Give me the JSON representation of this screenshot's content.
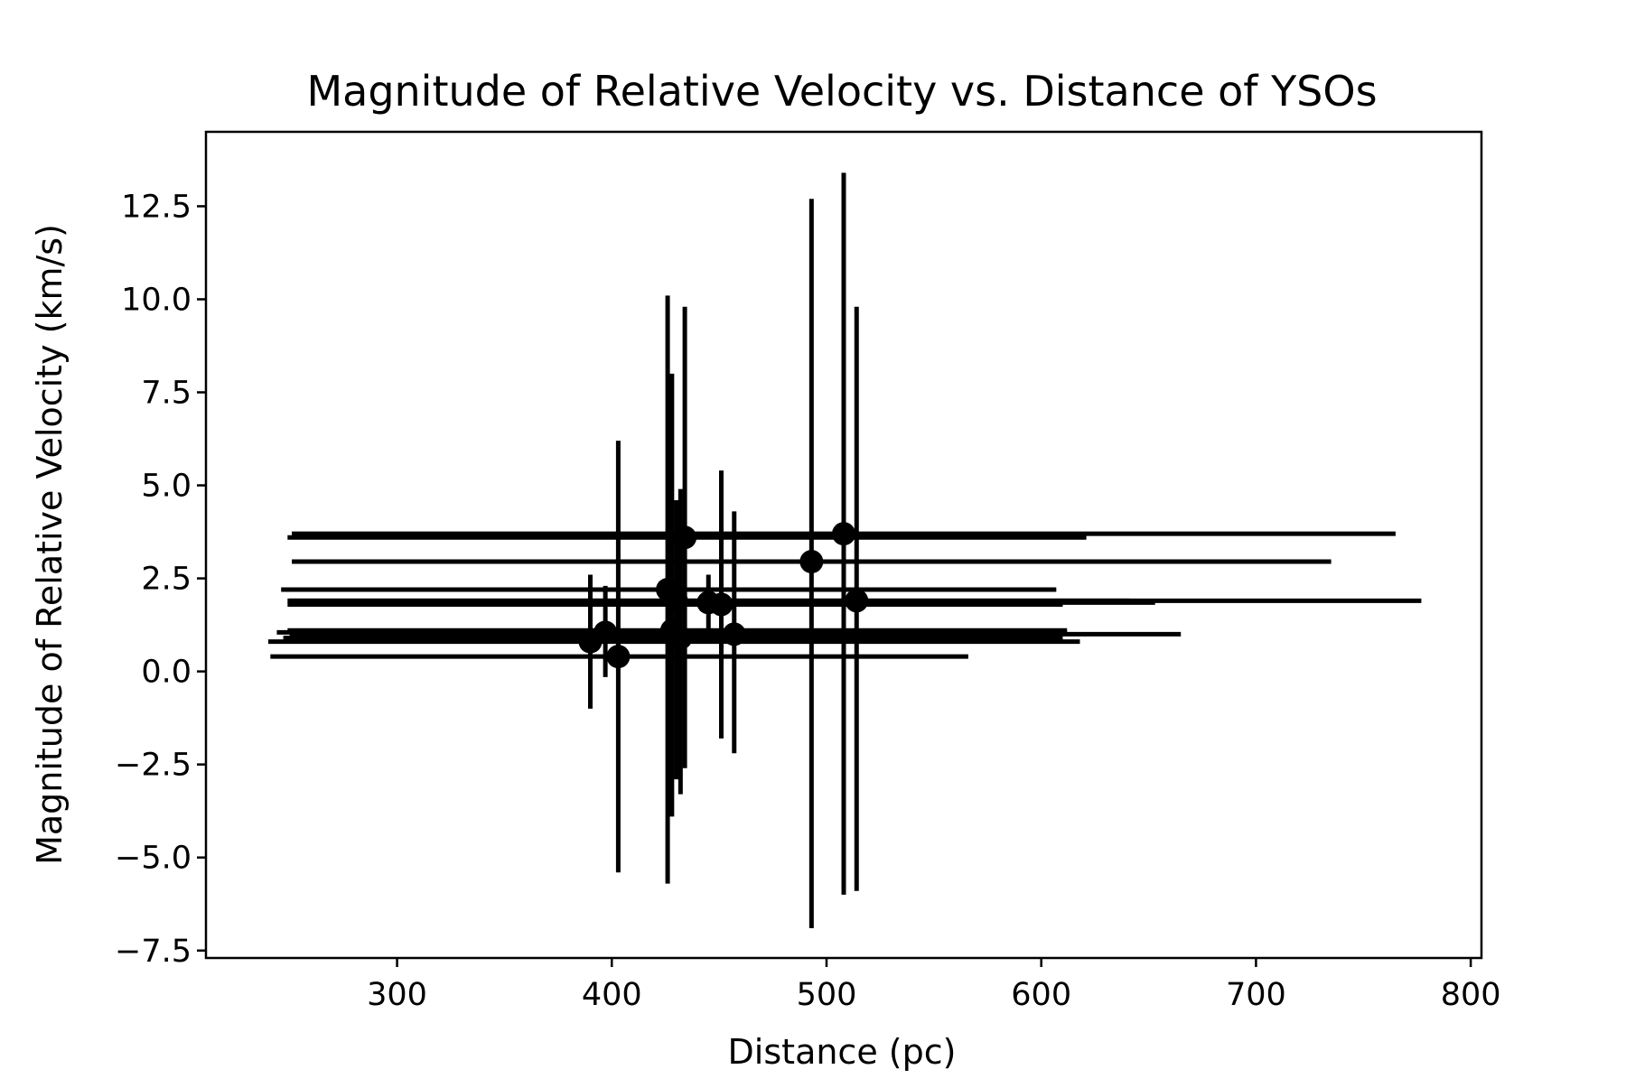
{
  "chart_data": {
    "type": "scatter",
    "title": "Magnitude of Relative Velocity vs. Distance of YSOs",
    "xlabel": "Distance (pc)",
    "ylabel": "Magnitude of Relative Velocity (km/s)",
    "xlim": [
      211,
      805
    ],
    "ylim": [
      -7.7,
      14.5
    ],
    "xticks": [
      {
        "value": 300,
        "label": "300"
      },
      {
        "value": 400,
        "label": "400"
      },
      {
        "value": 500,
        "label": "500"
      },
      {
        "value": 600,
        "label": "600"
      },
      {
        "value": 700,
        "label": "700"
      },
      {
        "value": 800,
        "label": "800"
      }
    ],
    "yticks": [
      {
        "value": -7.5,
        "label": "−7.5"
      },
      {
        "value": -5.0,
        "label": "−5.0"
      },
      {
        "value": -2.5,
        "label": "−2.5"
      },
      {
        "value": 0.0,
        "label": "0.0"
      },
      {
        "value": 2.5,
        "label": "2.5"
      },
      {
        "value": 5.0,
        "label": "5.0"
      },
      {
        "value": 7.5,
        "label": "7.5"
      },
      {
        "value": 10.0,
        "label": "10.0"
      },
      {
        "value": 12.5,
        "label": "12.5"
      }
    ],
    "grid": false,
    "legend": "none",
    "marker_color": "#000000",
    "points": [
      {
        "x": 390,
        "y": 0.8,
        "xmin": 240,
        "xmax": 618,
        "ymin": -1.0,
        "ymax": 2.6
      },
      {
        "x": 397,
        "y": 1.05,
        "xmin": 244,
        "xmax": 612,
        "ymin": -0.15,
        "ymax": 2.3
      },
      {
        "x": 403,
        "y": 0.4,
        "xmin": 241,
        "xmax": 566,
        "ymin": -5.4,
        "ymax": 6.2
      },
      {
        "x": 426,
        "y": 2.2,
        "xmin": 246,
        "xmax": 607,
        "ymin": -5.7,
        "ymax": 10.1
      },
      {
        "x": 428,
        "y": 1.1,
        "xmin": 249,
        "xmax": 612,
        "ymin": -3.9,
        "ymax": 8.0
      },
      {
        "x": 430,
        "y": 1.9,
        "xmin": 249,
        "xmax": 641,
        "ymin": -2.9,
        "ymax": 4.6
      },
      {
        "x": 432,
        "y": 0.9,
        "xmin": 247,
        "xmax": 610,
        "ymin": -3.3,
        "ymax": 4.9
      },
      {
        "x": 434,
        "y": 3.6,
        "xmin": 249,
        "xmax": 621,
        "ymin": -2.6,
        "ymax": 9.8
      },
      {
        "x": 445,
        "y": 1.85,
        "xmin": 251,
        "xmax": 653,
        "ymin": 1.1,
        "ymax": 2.6
      },
      {
        "x": 451,
        "y": 1.8,
        "xmin": 249,
        "xmax": 610,
        "ymin": -1.8,
        "ymax": 5.4
      },
      {
        "x": 457,
        "y": 1.0,
        "xmin": 250,
        "xmax": 665,
        "ymin": -2.2,
        "ymax": 4.3
      },
      {
        "x": 493,
        "y": 2.95,
        "xmin": 251,
        "xmax": 735,
        "ymin": -6.9,
        "ymax": 12.7
      },
      {
        "x": 508,
        "y": 3.7,
        "xmin": 251,
        "xmax": 765,
        "ymin": -6.0,
        "ymax": 13.4
      },
      {
        "x": 514,
        "y": 1.9,
        "xmin": 250,
        "xmax": 777,
        "ymin": -5.9,
        "ymax": 9.8
      }
    ]
  }
}
